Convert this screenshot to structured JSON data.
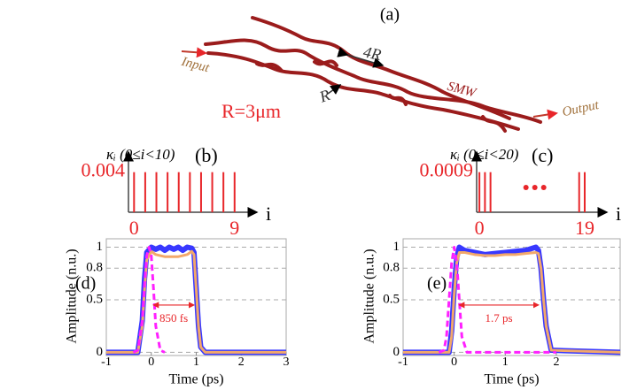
{
  "panel_a": {
    "label": "(a)",
    "input": "Input",
    "output": "Output",
    "smw": "SMW",
    "r": "R",
    "four_r": "4R",
    "radius": "R=3μm"
  },
  "chart_data": [
    {
      "type": "stem",
      "panel_label": "(b)",
      "y_label": "κᵢ (0≤i<10)",
      "x_label": "i",
      "color": "#e8262a",
      "x": [
        0,
        1,
        2,
        3,
        4,
        5,
        6,
        7,
        8,
        9
      ],
      "values": [
        0.004,
        0.004,
        0.004,
        0.004,
        0.004,
        0.004,
        0.004,
        0.004,
        0.004,
        0.004
      ],
      "xlim": [
        -0.5,
        11
      ],
      "xticks": [
        0,
        9
      ],
      "ylim": [
        0,
        0.006
      ],
      "yticks": [
        0.004
      ],
      "ellipsis": false
    },
    {
      "type": "stem",
      "panel_label": "(c)",
      "y_label": "κᵢ (0≤i<20)",
      "x_label": "i",
      "color": "#e8262a",
      "x": [
        0,
        1,
        2,
        18,
        19
      ],
      "values": [
        0.0009,
        0.0009,
        0.0009,
        0.0009,
        0.0009
      ],
      "xlim": [
        -0.5,
        23
      ],
      "xticks": [
        0,
        19
      ],
      "ylim": [
        0,
        0.00135
      ],
      "yticks": [
        0.0009
      ],
      "ellipsis": true
    },
    {
      "type": "line",
      "panel_label": "(d)",
      "y_label": "Amplitude (n.u.)",
      "x_label": "Time (ps)",
      "annotation": "850 fs",
      "xlim": [
        -1,
        3
      ],
      "xticks": [
        -1,
        0,
        1,
        2,
        3
      ],
      "ylim": [
        -0.03,
        1.08
      ],
      "yticks": [
        0,
        0.5,
        0.8,
        1
      ],
      "grid": true,
      "series": [
        {
          "color": "#3838ff",
          "x": [
            -1,
            -0.3,
            -0.2,
            -0.15,
            -0.1,
            0,
            0.1,
            0.2,
            0.3,
            0.4,
            0.5,
            0.6,
            0.7,
            0.8,
            0.9,
            0.95,
            1.0,
            1.05,
            1.1,
            1.2,
            3
          ],
          "values": [
            0,
            0,
            0.3,
            0.7,
            0.95,
            1,
            0.98,
            1.0,
            0.97,
            1.0,
            0.98,
            1.0,
            0.97,
            1.0,
            0.99,
            0.95,
            0.6,
            0.25,
            0.05,
            0,
            0
          ]
        },
        {
          "color": "#f2a86a",
          "x": [
            -1,
            -0.3,
            -0.2,
            -0.15,
            -0.1,
            0,
            0.1,
            0.2,
            0.3,
            0.4,
            0.5,
            0.6,
            0.7,
            0.8,
            0.9,
            0.95,
            1.0,
            1.05,
            1.1,
            1.2,
            3
          ],
          "values": [
            0,
            0,
            0.25,
            0.6,
            0.88,
            0.96,
            0.93,
            0.92,
            0.91,
            0.91,
            0.91,
            0.91,
            0.92,
            0.93,
            0.96,
            0.93,
            0.6,
            0.25,
            0.05,
            0,
            0
          ]
        },
        {
          "color": "#ff20ff",
          "dashed": true,
          "x": [
            -0.4,
            -0.3,
            -0.2,
            -0.15,
            -0.1,
            -0.05,
            0,
            0.05,
            0.1,
            0.2,
            0.3
          ],
          "values": [
            0,
            0.02,
            0.3,
            0.65,
            0.92,
            1,
            0.92,
            0.6,
            0.25,
            0.02,
            0
          ]
        }
      ]
    },
    {
      "type": "line",
      "panel_label": "(e)",
      "y_label": "Amplitude (n.u.)",
      "x_label": "Time (ps)",
      "annotation": "1.7 ps",
      "xlim": [
        -1,
        3.25
      ],
      "xticks": [
        -1,
        0,
        1,
        2
      ],
      "ylim": [
        -0.03,
        1.08
      ],
      "yticks": [
        0,
        0.5,
        0.8,
        1
      ],
      "grid": true,
      "series": [
        {
          "color": "#3838ff",
          "x": [
            -1,
            -0.1,
            -0.05,
            0,
            0.05,
            0.1,
            0.2,
            0.4,
            0.6,
            0.8,
            1.0,
            1.2,
            1.4,
            1.6,
            1.65,
            1.7,
            1.75,
            1.8,
            1.9,
            3.25
          ],
          "values": [
            0,
            0,
            0.2,
            0.6,
            0.9,
            1.0,
            0.97,
            0.95,
            0.93,
            0.94,
            0.95,
            0.96,
            0.97,
            1.0,
            0.97,
            0.8,
            0.5,
            0.25,
            0.02,
            0
          ]
        },
        {
          "color": "#f2a86a",
          "x": [
            -1,
            -0.1,
            -0.05,
            0,
            0.05,
            0.1,
            0.2,
            0.4,
            0.6,
            0.8,
            1.0,
            1.2,
            1.4,
            1.6,
            1.65,
            1.7,
            1.75,
            1.8,
            1.9,
            3.25
          ],
          "values": [
            0,
            0,
            0.15,
            0.55,
            0.85,
            0.95,
            0.95,
            0.93,
            0.92,
            0.92,
            0.93,
            0.93,
            0.94,
            0.95,
            0.94,
            0.8,
            0.5,
            0.25,
            0.02,
            0
          ]
        },
        {
          "color": "#ff20ff",
          "dashed": true,
          "x": [
            -0.3,
            -0.2,
            -0.15,
            -0.1,
            -0.05,
            0,
            0.05,
            0.1,
            0.15,
            0.25,
            2.0
          ],
          "values": [
            0,
            0.02,
            0.15,
            0.5,
            0.85,
            1,
            0.85,
            0.5,
            0.15,
            0,
            0
          ]
        }
      ]
    }
  ]
}
